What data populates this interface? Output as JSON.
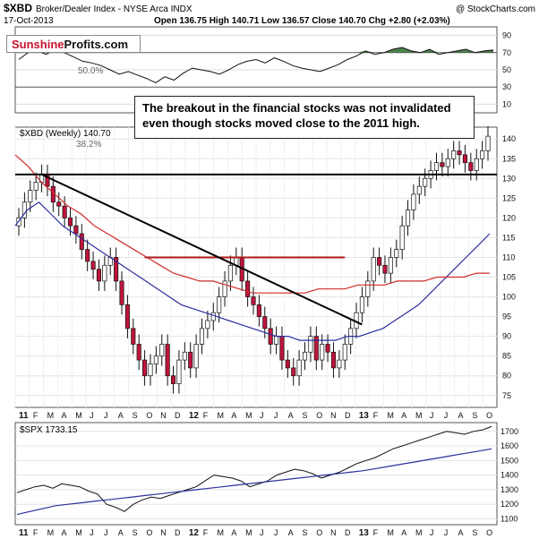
{
  "header": {
    "symbol": "$XBD",
    "name": "Broker/Dealer Index - NYSE Arca  INDX",
    "source": "@ StockCharts.com",
    "date": "17-Oct-2013",
    "ohlc": "Open 136.75  High 140.71  Low 136.57  Close 140.70  Chg +2.80 (+2.03%)"
  },
  "logo": {
    "part1": "Sunshine",
    "part2": "Profits.com"
  },
  "annotation": "The breakout in the financial stocks was not invalidated even though stocks moved close to the 2011 high.",
  "colors": {
    "up_candle": "#ffffff",
    "down_candle": "#c0143c",
    "ma50": "#2b2f9e",
    "ma200": "#d02b2b",
    "trendline": "#000000",
    "resistance": "#b01818",
    "rsi_fill": "#2e6b2e"
  },
  "chart_data": [
    {
      "type": "line",
      "panel": "rsi",
      "y_ticks": [
        10,
        30,
        50,
        70,
        90
      ],
      "ylim": [
        0,
        100
      ],
      "annotations": [
        "50.0%"
      ],
      "series": [
        {
          "name": "",
          "values": [
            62,
            70,
            72,
            68,
            74,
            70,
            65,
            60,
            58,
            55,
            50,
            45,
            48,
            44,
            40,
            35,
            42,
            38,
            46,
            52,
            50,
            48,
            45,
            50,
            56,
            60,
            62,
            58,
            64,
            60,
            55,
            52,
            50,
            48,
            52,
            56,
            62,
            66,
            72,
            68,
            70,
            74,
            76,
            72,
            70,
            74,
            68,
            70,
            72,
            74,
            70,
            72,
            73
          ]
        }
      ]
    },
    {
      "type": "candlestick",
      "panel": "main",
      "title": "$XBD (Weekly) 140.70",
      "annotations": [
        "38.2%"
      ],
      "x_labels": [
        "11",
        "F",
        "M",
        "A",
        "M",
        "J",
        "J",
        "A",
        "S",
        "O",
        "N",
        "D",
        "12",
        "F",
        "M",
        "A",
        "M",
        "J",
        "J",
        "A",
        "S",
        "O",
        "N",
        "D",
        "13",
        "F",
        "M",
        "A",
        "M",
        "J",
        "J",
        "A",
        "S",
        "O"
      ],
      "y_ticks": [
        75,
        80,
        85,
        90,
        95,
        100,
        105,
        110,
        115,
        120,
        125,
        130,
        135,
        140
      ],
      "ylim": [
        72,
        143
      ],
      "resistance_level": 131,
      "resistance_2012": 110,
      "close": [
        120,
        124,
        127,
        129,
        131,
        128,
        124,
        123,
        120,
        118,
        116,
        112,
        109,
        107,
        104,
        108,
        110,
        104,
        98,
        92,
        88,
        84,
        80,
        83,
        85,
        88,
        80,
        78,
        84,
        86,
        82,
        88,
        92,
        94,
        96,
        100,
        104,
        108,
        110,
        104,
        100,
        98,
        95,
        92,
        88,
        90,
        84,
        82,
        80,
        84,
        86,
        90,
        84,
        88,
        86,
        82,
        84,
        88,
        92,
        96,
        100,
        104,
        110,
        108,
        106,
        110,
        112,
        118,
        122,
        126,
        128,
        130,
        132,
        134,
        133,
        135,
        137,
        136,
        134,
        132,
        135,
        137,
        140.7
      ],
      "series": [
        {
          "name": "",
          "values": [
            118,
            122,
            124,
            121,
            118,
            116,
            114,
            112,
            110,
            108,
            106,
            104,
            102,
            100,
            98,
            97,
            96,
            95,
            94,
            93,
            92,
            91,
            90,
            90,
            89,
            89,
            89,
            89,
            90,
            90,
            91,
            92,
            94,
            96,
            98,
            101,
            104,
            107,
            110,
            113,
            116
          ]
        },
        {
          "name": "",
          "values": [
            136,
            133,
            129,
            126,
            123,
            121,
            118,
            116,
            114,
            112,
            110,
            108,
            106,
            105,
            104,
            104,
            103,
            102,
            101,
            101,
            101,
            101,
            101,
            102,
            102,
            102,
            103,
            103,
            103,
            104,
            104,
            104,
            105,
            105,
            105,
            106,
            106
          ]
        }
      ]
    },
    {
      "type": "line",
      "panel": "spx",
      "title": "$SPX 1733.15",
      "x_labels": [
        "11",
        "F",
        "M",
        "A",
        "M",
        "J",
        "J",
        "A",
        "S",
        "O",
        "N",
        "D",
        "12",
        "F",
        "M",
        "A",
        "M",
        "J",
        "J",
        "A",
        "S",
        "O",
        "N",
        "D",
        "13",
        "F",
        "M",
        "A",
        "M",
        "J",
        "J",
        "A",
        "S",
        "O"
      ],
      "y_ticks": [
        1100,
        1200,
        1300,
        1400,
        1500,
        1600,
        1700
      ],
      "ylim": [
        1060,
        1760
      ],
      "series": [
        {
          "name": "",
          "values": [
            1280,
            1300,
            1320,
            1330,
            1310,
            1340,
            1330,
            1320,
            1290,
            1270,
            1200,
            1180,
            1150,
            1200,
            1230,
            1250,
            1240,
            1260,
            1280,
            1300,
            1320,
            1360,
            1400,
            1390,
            1380,
            1360,
            1320,
            1340,
            1360,
            1400,
            1420,
            1440,
            1430,
            1410,
            1380,
            1400,
            1420,
            1450,
            1480,
            1500,
            1520,
            1550,
            1580,
            1600,
            1620,
            1640,
            1660,
            1680,
            1700,
            1690,
            1680,
            1700,
            1710,
            1733
          ]
        },
        {
          "name": "",
          "values": [
            1130,
            1150,
            1170,
            1190,
            1200,
            1210,
            1220,
            1230,
            1240,
            1250,
            1260,
            1270,
            1280,
            1290,
            1300,
            1310,
            1320,
            1330,
            1340,
            1350,
            1360,
            1370,
            1380,
            1390,
            1400,
            1410,
            1420,
            1430,
            1445,
            1460,
            1475,
            1490,
            1505,
            1520,
            1535,
            1550,
            1565,
            1580
          ]
        }
      ]
    }
  ]
}
